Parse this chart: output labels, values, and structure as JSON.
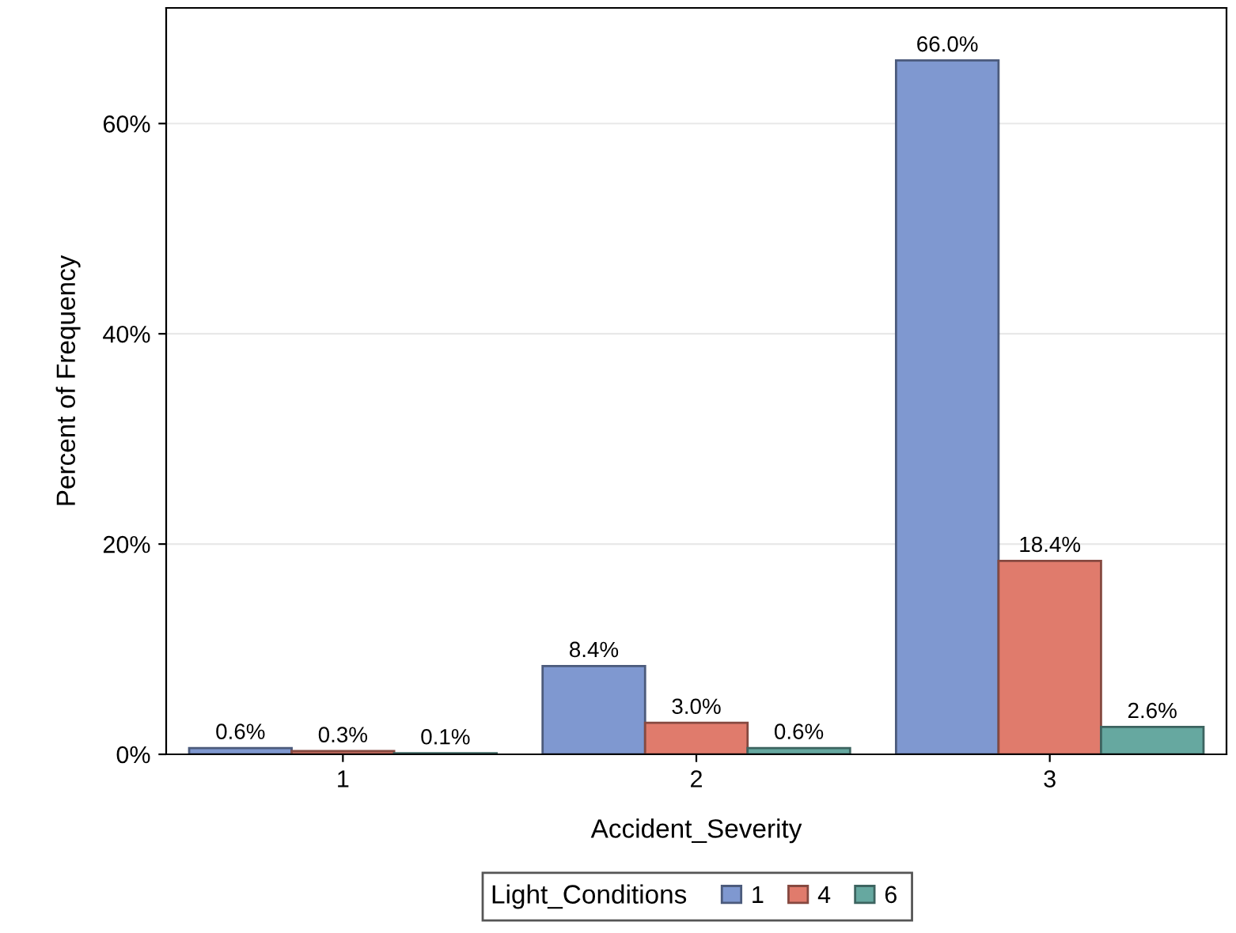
{
  "chart_data": {
    "type": "bar",
    "xlabel": "Accident_Severity",
    "ylabel": "Percent of Frequency",
    "legend_title": "Light_Conditions",
    "categories": [
      "1",
      "2",
      "3"
    ],
    "series": [
      {
        "name": "1",
        "color": "#7f98d0",
        "values": [
          0.6,
          8.4,
          66.0
        ],
        "value_labels": [
          "0.6%",
          "8.4%",
          "66.0%"
        ]
      },
      {
        "name": "4",
        "color": "#e07b6c",
        "values": [
          0.3,
          3.0,
          18.4
        ],
        "value_labels": [
          "0.3%",
          "3.0%",
          "18.4%"
        ]
      },
      {
        "name": "6",
        "color": "#66a8a0",
        "values": [
          0.1,
          0.6,
          2.6
        ],
        "value_labels": [
          "0.1%",
          "0.6%",
          "2.6%"
        ]
      }
    ],
    "ylim": [
      0,
      71
    ],
    "yticks": [
      {
        "value": 0,
        "label": "0%"
      },
      {
        "value": 20,
        "label": "20%"
      },
      {
        "value": 40,
        "label": "40%"
      },
      {
        "value": 60,
        "label": "60%"
      }
    ],
    "grid": "y",
    "legend": "bottom"
  }
}
